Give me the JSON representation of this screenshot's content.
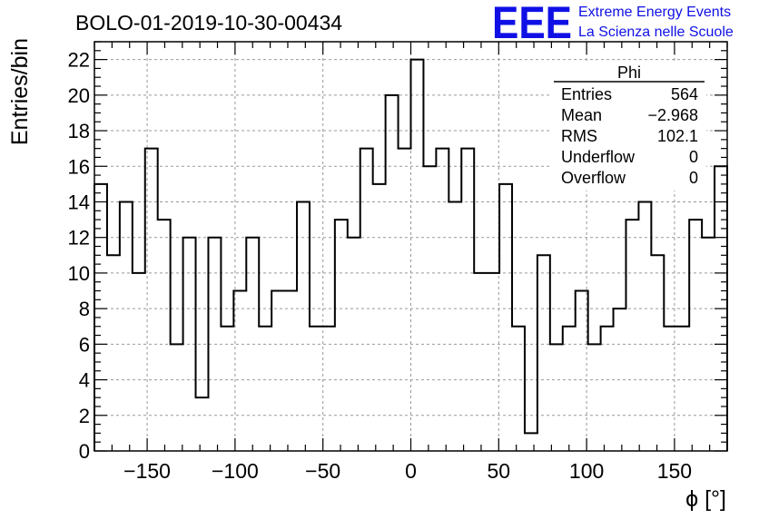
{
  "chart_data": {
    "type": "histogram",
    "title": "BOLO-01-2019-10-30-00434",
    "xlabel": "ϕ [°]",
    "ylabel": "Entries/bin",
    "xlim": [
      -180,
      180
    ],
    "ylim": [
      0,
      23
    ],
    "grid": true,
    "bin_width": 7.2,
    "bin_edges_start": -180,
    "x_ticks": [
      -150,
      -100,
      -50,
      0,
      50,
      100,
      150
    ],
    "x_tick_labels": [
      "−150",
      "−100",
      "−50",
      "0",
      "50",
      "100",
      "150"
    ],
    "y_ticks": [
      0,
      2,
      4,
      6,
      8,
      10,
      12,
      14,
      16,
      18,
      20,
      22
    ],
    "values": [
      15,
      11,
      14,
      10,
      17,
      13,
      6,
      12,
      3,
      12,
      7,
      9,
      12,
      7,
      9,
      9,
      14,
      7,
      7,
      13,
      12,
      17,
      15,
      20,
      17,
      22,
      16,
      17,
      14,
      17,
      10,
      10,
      15,
      7,
      1,
      11,
      6,
      7,
      9,
      6,
      7,
      8,
      13,
      14,
      11,
      7,
      7,
      13,
      12,
      16
    ]
  },
  "stats_box": {
    "name": "Phi",
    "rows": [
      {
        "label": "Entries",
        "value": "564"
      },
      {
        "label": "Mean",
        "value": "−2.968"
      },
      {
        "label": "RMS",
        "value": "102.1"
      },
      {
        "label": "Underflow",
        "value": "0"
      },
      {
        "label": "Overflow",
        "value": "0"
      }
    ]
  },
  "logo": {
    "mark": "EEE",
    "line1": "Extreme Energy Events",
    "line2": "La Scienza nelle Scuole",
    "color": "#1010e6"
  }
}
